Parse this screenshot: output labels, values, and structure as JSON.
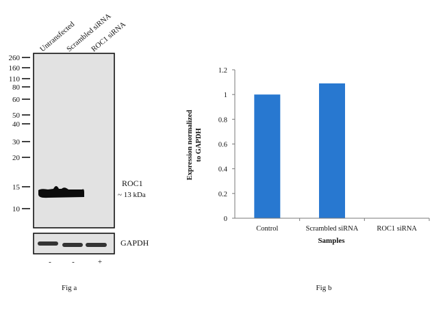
{
  "figure_a": {
    "caption": "Fig a",
    "lanes": [
      "Untransfected",
      "Scrambled siRNA",
      "ROC1 siRNA"
    ],
    "markers_kda": [
      "260",
      "160",
      "110",
      "80",
      "60",
      "50",
      "40",
      "30",
      "20",
      "15",
      "10"
    ],
    "target_label": "ROC1",
    "target_size": "~ 13 kDa",
    "loading_control": "GAPDH",
    "treatment_signs": [
      "-",
      "-",
      "+"
    ]
  },
  "chart_data": {
    "type": "bar",
    "title": "Fig b",
    "categories": [
      "Control",
      "Scrambled siRNA",
      "ROC1 siRNA"
    ],
    "values": [
      1.0,
      1.09,
      0.0
    ],
    "xlabel": "Samples",
    "ylabel_line1": "Expression normalized",
    "ylabel_line2": "to GAPDH",
    "ylim": [
      0,
      1.2
    ],
    "yticks": [
      "0",
      "0.2",
      "0.4",
      "0.6",
      "0.8",
      "1",
      "1.2"
    ],
    "grid": false,
    "bar_color": "#2878d0"
  }
}
